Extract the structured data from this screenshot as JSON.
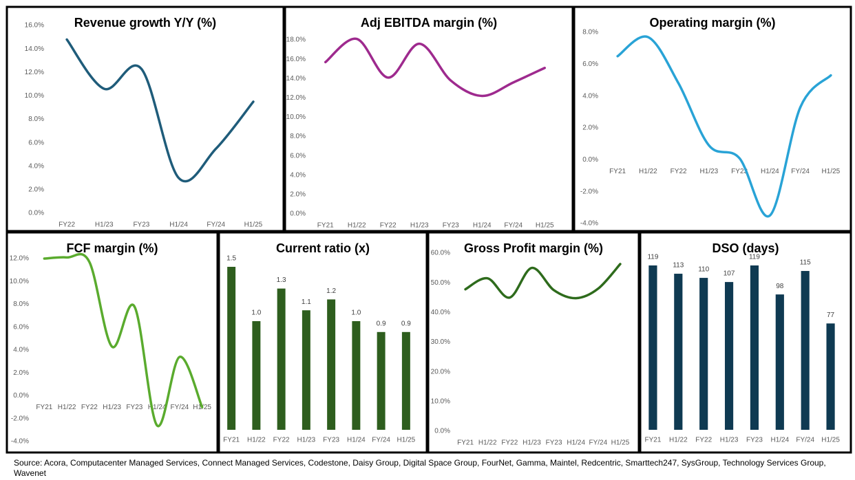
{
  "chart_data": [
    {
      "type": "line",
      "title": "Revenue growth Y/Y (%)",
      "color": "#1f5c7a",
      "categories": [
        "FY22",
        "H1/23",
        "FY23",
        "H1/24",
        "FY/24",
        "H1/25"
      ],
      "values": [
        14.8,
        10.6,
        12.3,
        3.0,
        5.5,
        9.5
      ],
      "ylim": [
        0,
        16
      ],
      "yticks": [
        {
          "value": 0,
          "label": "0.0%"
        },
        {
          "value": 2,
          "label": "2.0%"
        },
        {
          "value": 4,
          "label": "4.0%"
        },
        {
          "value": 6,
          "label": "6.0%"
        },
        {
          "value": 8,
          "label": "8.0%"
        },
        {
          "value": 10,
          "label": "10.0%"
        },
        {
          "value": 12,
          "label": "12.0%"
        },
        {
          "value": 14,
          "label": "14.0%"
        },
        {
          "value": 16,
          "label": "16.0%"
        }
      ]
    },
    {
      "type": "line",
      "title": "Adj EBITDA margin (%)",
      "color": "#9e2a8e",
      "categories": [
        "FY21",
        "H1/22",
        "FY22",
        "H1/23",
        "FY23",
        "H1/24",
        "FY/24",
        "H1/25"
      ],
      "values": [
        15.7,
        18.1,
        14.1,
        17.6,
        13.8,
        12.2,
        13.6,
        15.1
      ],
      "ylim": [
        0,
        18
      ],
      "yticks": [
        {
          "value": 0,
          "label": "0.0%"
        },
        {
          "value": 2,
          "label": "2.0%"
        },
        {
          "value": 4,
          "label": "4.0%"
        },
        {
          "value": 6,
          "label": "6.0%"
        },
        {
          "value": 8,
          "label": "8.0%"
        },
        {
          "value": 10,
          "label": "10.0%"
        },
        {
          "value": 12,
          "label": "12.0%"
        },
        {
          "value": 14,
          "label": "14.0%"
        },
        {
          "value": 16,
          "label": "16.0%"
        },
        {
          "value": 18,
          "label": "18.0%"
        }
      ]
    },
    {
      "type": "line",
      "title": "Operating margin (%)",
      "color": "#29a3d6",
      "categories": [
        "FY21",
        "H1/22",
        "FY22",
        "H1/23",
        "FY23",
        "H1/24",
        "FY/24",
        "H1/25"
      ],
      "values": [
        6.5,
        7.7,
        4.8,
        0.9,
        0.1,
        -3.5,
        3.3,
        5.3
      ],
      "ylim": [
        -4,
        8
      ],
      "yticks": [
        {
          "value": -4,
          "label": "-4.0%"
        },
        {
          "value": -2,
          "label": "-2.0%"
        },
        {
          "value": 0,
          "label": "0.0%"
        },
        {
          "value": 2,
          "label": "2.0%"
        },
        {
          "value": 4,
          "label": "4.0%"
        },
        {
          "value": 6,
          "label": "6.0%"
        },
        {
          "value": 8,
          "label": "8.0%"
        }
      ]
    },
    {
      "type": "line",
      "title": "FCF margin (%)",
      "color": "#5aab2e",
      "categories": [
        "FY21",
        "H1/22",
        "FY22",
        "H1/23",
        "FY23",
        "H1/24",
        "FY/24",
        "H1/25"
      ],
      "values": [
        12.0,
        12.1,
        11.7,
        4.3,
        7.8,
        -2.6,
        3.4,
        -1.0
      ],
      "ylim": [
        -4,
        12
      ],
      "yticks": [
        {
          "value": -4,
          "label": "-4.0%"
        },
        {
          "value": -2,
          "label": "-2.0%"
        },
        {
          "value": 0,
          "label": "0.0%"
        },
        {
          "value": 2,
          "label": "2.0%"
        },
        {
          "value": 4,
          "label": "4.0%"
        },
        {
          "value": 6,
          "label": "6.0%"
        },
        {
          "value": 8,
          "label": "8.0%"
        },
        {
          "value": 10,
          "label": "10.0%"
        },
        {
          "value": 12,
          "label": "12.0%"
        }
      ]
    },
    {
      "type": "bar",
      "title": "Current ratio (x)",
      "color": "#2e5e1e",
      "categories": [
        "FY21",
        "H1/22",
        "FY22",
        "H1/23",
        "FY23",
        "H1/24",
        "FY/24",
        "H1/25"
      ],
      "values": [
        1.5,
        1.0,
        1.3,
        1.1,
        1.2,
        1.0,
        0.9,
        0.9
      ],
      "value_labels": [
        "1.5",
        "1.0",
        "1.3",
        "1.1",
        "1.2",
        "1.0",
        "0.9",
        "0.9"
      ]
    },
    {
      "type": "line",
      "title": "Gross Profit margin (%)",
      "color": "#2e6b1c",
      "categories": [
        "FY21",
        "H1/22",
        "FY22",
        "H1/23",
        "FY23",
        "H1/24",
        "FY/24",
        "H1/25"
      ],
      "values": [
        47.8,
        51.5,
        45.0,
        55.0,
        47.5,
        44.8,
        48.0,
        56.3
      ],
      "ylim": [
        0,
        60
      ],
      "yticks": [
        {
          "value": 0,
          "label": "0.0%"
        },
        {
          "value": 10,
          "label": "10.0%"
        },
        {
          "value": 20,
          "label": "20.0%"
        },
        {
          "value": 30,
          "label": "30.0%"
        },
        {
          "value": 40,
          "label": "40.0%"
        },
        {
          "value": 50,
          "label": "50.0%"
        },
        {
          "value": 60,
          "label": "60.0%"
        }
      ]
    },
    {
      "type": "bar",
      "title": "DSO (days)",
      "color": "#0f3a52",
      "categories": [
        "FY21",
        "H1/22",
        "FY22",
        "H1/23",
        "FY23",
        "H1/24",
        "FY/24",
        "H1/25"
      ],
      "values": [
        119,
        113,
        110,
        107,
        119,
        98,
        115,
        77
      ]
    }
  ],
  "source": "Source: Acora, Computacenter Managed Services, Connect Managed Services, Codestone, Daisy Group, Digital Space Group, FourNet, Gamma, Maintel, Redcentric, Smarttech247, SysGroup, Technology Services Group, Wavenet"
}
